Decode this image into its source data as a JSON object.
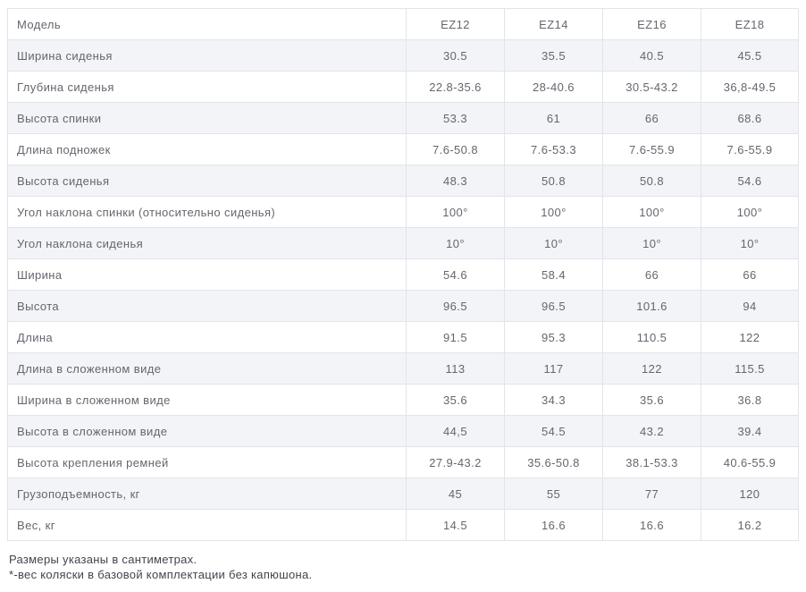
{
  "table": {
    "header": {
      "label": "Модель",
      "columns": [
        "EZ12",
        "EZ14",
        "EZ16",
        "EZ18"
      ]
    },
    "rows": [
      {
        "label": "Ширина сиденья",
        "values": [
          "30.5",
          "35.5",
          "40.5",
          "45.5"
        ]
      },
      {
        "label": "Глубина сиденья",
        "values": [
          "22.8-35.6",
          "28-40.6",
          "30.5-43.2",
          "36,8-49.5"
        ]
      },
      {
        "label": "Высота спинки",
        "values": [
          "53.3",
          "61",
          "66",
          "68.6"
        ]
      },
      {
        "label": "Длина подножек",
        "values": [
          "7.6-50.8",
          "7.6-53.3",
          "7.6-55.9",
          "7.6-55.9"
        ]
      },
      {
        "label": "Высота сиденья",
        "values": [
          "48.3",
          "50.8",
          "50.8",
          "54.6"
        ]
      },
      {
        "label": "Угол наклона спинки (относительно сиденья)",
        "values": [
          "100°",
          "100°",
          "100°",
          "100°"
        ]
      },
      {
        "label": "Угол наклона сиденья",
        "values": [
          "10°",
          "10°",
          "10°",
          "10°"
        ]
      },
      {
        "label": "Ширина",
        "values": [
          "54.6",
          "58.4",
          "66",
          "66"
        ]
      },
      {
        "label": "Высота",
        "values": [
          "96.5",
          "96.5",
          "101.6",
          "94"
        ]
      },
      {
        "label": "Длина",
        "values": [
          "91.5",
          "95.3",
          "110.5",
          "122"
        ]
      },
      {
        "label": "Длина в сложенном виде",
        "values": [
          "113",
          "117",
          "122",
          "115.5"
        ]
      },
      {
        "label": "Ширина в сложенном виде",
        "values": [
          "35.6",
          "34.3",
          "35.6",
          "36.8"
        ]
      },
      {
        "label": "Высота в сложенном виде",
        "values": [
          "44,5",
          "54.5",
          "43.2",
          "39.4"
        ]
      },
      {
        "label": "Высота крепления ремней",
        "values": [
          "27.9-43.2",
          "35.6-50.8",
          "38.1-53.3",
          "40.6-55.9"
        ]
      },
      {
        "label": "Грузоподъемность, кг",
        "values": [
          "45",
          "55",
          "77",
          "120"
        ]
      },
      {
        "label": "Вес, кг",
        "values": [
          "14.5",
          "16.6",
          "16.6",
          "16.2"
        ]
      }
    ],
    "footnotes": [
      "Размеры указаны в сантиметрах.",
      "*-вес коляски в базовой комплектации без капюшона."
    ],
    "colors": {
      "alt_row_bg": "#f2f4f7",
      "border": "#e2e4e9",
      "table_text": "#63676e",
      "footnote_text": "#41454d"
    }
  }
}
